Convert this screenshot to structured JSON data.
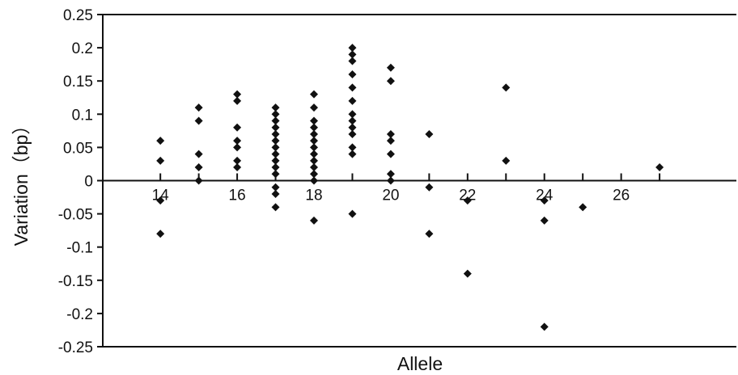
{
  "chart_data": {
    "type": "scatter",
    "title": "",
    "xlabel": "Allele",
    "ylabel": "Variation（bp）",
    "xlim": [
      12.5,
      29
    ],
    "ylim": [
      -0.25,
      0.25
    ],
    "grid": false,
    "legend": "none",
    "marker": "diamond",
    "marker_color": "#111111",
    "x_ticks": [
      14,
      16,
      18,
      20,
      22,
      24,
      26
    ],
    "x_minor_ticks": [
      15,
      17,
      19,
      21,
      23,
      25,
      27
    ],
    "y_ticks": [
      0.25,
      0.2,
      0.15,
      0.1,
      0.05,
      0,
      -0.05,
      -0.1,
      -0.15,
      -0.2,
      -0.25
    ],
    "y_tick_labels": [
      "0.25",
      "0.2",
      "0.15",
      "0.1",
      "0.05",
      "0",
      "-0.05",
      "-0.1",
      "-0.15",
      "-0.2",
      "-0.25"
    ],
    "x_tick_labels": [
      "14",
      "16",
      "18",
      "20",
      "22",
      "24",
      "26"
    ],
    "points": [
      [
        14,
        0.06
      ],
      [
        14,
        0.03
      ],
      [
        14,
        -0.03
      ],
      [
        14,
        -0.08
      ],
      [
        15,
        0.11
      ],
      [
        15,
        0.09
      ],
      [
        15,
        0.04
      ],
      [
        15,
        0.02
      ],
      [
        15,
        0.0
      ],
      [
        16,
        0.13
      ],
      [
        16,
        0.12
      ],
      [
        16,
        0.08
      ],
      [
        16,
        0.06
      ],
      [
        16,
        0.05
      ],
      [
        16,
        0.03
      ],
      [
        16,
        0.02
      ],
      [
        17,
        0.11
      ],
      [
        17,
        0.1
      ],
      [
        17,
        0.09
      ],
      [
        17,
        0.08
      ],
      [
        17,
        0.07
      ],
      [
        17,
        0.06
      ],
      [
        17,
        0.05
      ],
      [
        17,
        0.04
      ],
      [
        17,
        0.03
      ],
      [
        17,
        0.02
      ],
      [
        17,
        0.01
      ],
      [
        17,
        -0.01
      ],
      [
        17,
        -0.02
      ],
      [
        17,
        -0.04
      ],
      [
        18,
        0.13
      ],
      [
        18,
        0.11
      ],
      [
        18,
        0.09
      ],
      [
        18,
        0.08
      ],
      [
        18,
        0.07
      ],
      [
        18,
        0.06
      ],
      [
        18,
        0.05
      ],
      [
        18,
        0.04
      ],
      [
        18,
        0.03
      ],
      [
        18,
        0.02
      ],
      [
        18,
        0.01
      ],
      [
        18,
        0.0
      ],
      [
        18,
        -0.06
      ],
      [
        19,
        0.2
      ],
      [
        19,
        0.19
      ],
      [
        19,
        0.18
      ],
      [
        19,
        0.16
      ],
      [
        19,
        0.14
      ],
      [
        19,
        0.12
      ],
      [
        19,
        0.1
      ],
      [
        19,
        0.09
      ],
      [
        19,
        0.08
      ],
      [
        19,
        0.07
      ],
      [
        19,
        0.05
      ],
      [
        19,
        0.04
      ],
      [
        19,
        -0.05
      ],
      [
        20,
        0.17
      ],
      [
        20,
        0.15
      ],
      [
        20,
        0.07
      ],
      [
        20,
        0.06
      ],
      [
        20,
        0.04
      ],
      [
        20,
        0.01
      ],
      [
        20,
        0.0
      ],
      [
        21,
        0.07
      ],
      [
        21,
        -0.01
      ],
      [
        21,
        -0.08
      ],
      [
        22,
        -0.03
      ],
      [
        22,
        -0.14
      ],
      [
        23,
        0.14
      ],
      [
        23,
        0.03
      ],
      [
        24,
        -0.03
      ],
      [
        24,
        -0.06
      ],
      [
        24,
        -0.22
      ],
      [
        25,
        -0.04
      ],
      [
        27,
        0.02
      ]
    ]
  }
}
